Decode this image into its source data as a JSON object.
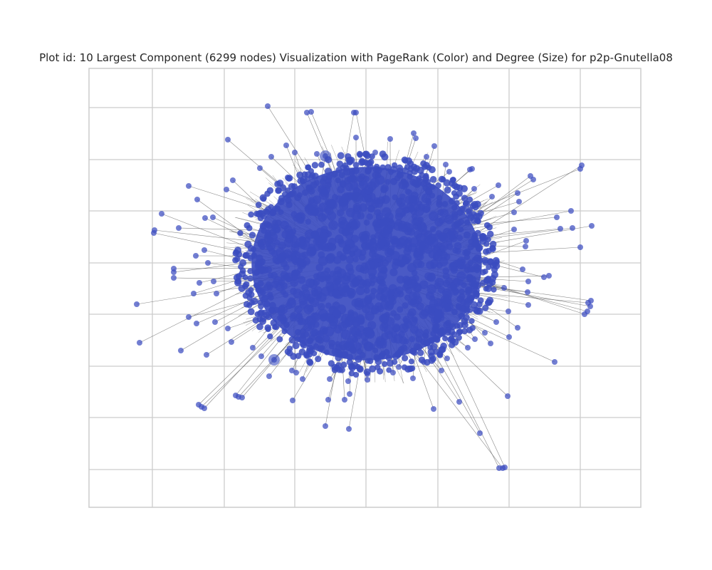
{
  "chart_data": {
    "type": "scatter",
    "title": "Plot id: 10 Largest Component (6299 nodes) Visualization with PageRank (Color) and Degree (Size) for p2p-Gnutella08",
    "xlabel": "",
    "ylabel": "",
    "grid": true,
    "legend": "none",
    "colors": {
      "node": "#3b4cc0",
      "edge": "#555555",
      "grid": "#cccccc",
      "frame": "#cccccc",
      "background": "#ffffff"
    },
    "series": [
      {
        "values_note_free": true,
        "nodes": 6299,
        "points": [
          [
            376,
            149
          ],
          [
            431,
            158
          ],
          [
            437,
            157
          ],
          [
            497,
            158
          ],
          [
            500,
            158
          ],
          [
            320,
            196
          ],
          [
            548,
            195
          ],
          [
            581,
            187
          ],
          [
            457,
            219
          ],
          [
            265,
            261
          ],
          [
            227,
            300
          ],
          [
            217,
            323
          ],
          [
            216,
            327
          ],
          [
            251,
            320
          ],
          [
            244,
            377
          ],
          [
            244,
            382
          ],
          [
            244,
            390
          ],
          [
            192,
            427
          ],
          [
            196,
            481
          ],
          [
            254,
            492
          ],
          [
            290,
            498
          ],
          [
            272,
            412
          ],
          [
            276,
            454
          ],
          [
            279,
            568
          ],
          [
            283,
            571
          ],
          [
            287,
            573
          ],
          [
            331,
            555
          ],
          [
            335,
            557
          ],
          [
            340,
            558
          ],
          [
            385,
            505
          ],
          [
            411,
            562
          ],
          [
            457,
            598
          ],
          [
            490,
            602
          ],
          [
            461,
            561
          ],
          [
            484,
            561
          ],
          [
            491,
            553
          ],
          [
            516,
            533
          ],
          [
            580,
            531
          ],
          [
            609,
            574
          ],
          [
            645,
            564
          ],
          [
            674,
            608
          ],
          [
            701,
            657
          ],
          [
            706,
            657
          ],
          [
            709,
            656
          ],
          [
            713,
            556
          ],
          [
            779,
            508
          ],
          [
            727,
            460
          ],
          [
            817,
            232
          ],
          [
            815,
            237
          ],
          [
            745,
            247
          ],
          [
            749,
            252
          ],
          [
            782,
            305
          ],
          [
            802,
            296
          ],
          [
            831,
            317
          ],
          [
            804,
            320
          ],
          [
            787,
            321
          ],
          [
            815,
            347
          ],
          [
            764,
            389
          ],
          [
            771,
            387
          ],
          [
            826,
            425
          ],
          [
            829,
            430
          ],
          [
            825,
            437
          ],
          [
            821,
            441
          ],
          [
            830,
            422
          ],
          [
            741,
            410
          ],
          [
            742,
            428
          ],
          [
            742,
            395
          ],
          [
            708,
            404
          ],
          [
            715,
            473
          ],
          [
            689,
            482
          ],
          [
            660,
            238
          ],
          [
            663,
            237
          ],
          [
            631,
            241
          ],
          [
            626,
            231
          ],
          [
            599,
            220
          ],
          [
            610,
            205
          ],
          [
            584,
            194
          ],
          [
            527,
            214
          ],
          [
            500,
            193
          ],
          [
            445,
            216
          ],
          [
            414,
            214
          ],
          [
            402,
            204
          ],
          [
            381,
            220
          ],
          [
            365,
            236
          ],
          [
            327,
            253
          ],
          [
            318,
            266
          ],
          [
            277,
            280
          ],
          [
            288,
            306
          ],
          [
            299,
            305
          ],
          [
            275,
            359
          ],
          [
            287,
            351
          ],
          [
            292,
            369
          ],
          [
            300,
            395
          ],
          [
            304,
            412
          ],
          [
            280,
            397
          ],
          [
            265,
            445
          ],
          [
            302,
            452
          ],
          [
            320,
            461
          ],
          [
            325,
            480
          ],
          [
            355,
            488
          ],
          [
            367,
            500
          ],
          [
            378,
            528
          ],
          [
            410,
            520
          ],
          [
            416,
            523
          ],
          [
            425,
            532
          ],
          [
            430,
            499
          ],
          [
            463,
            532
          ],
          [
            489,
            535
          ],
          [
            516,
            525
          ],
          [
            552,
            523
          ],
          [
            560,
            515
          ],
          [
            595,
            508
          ],
          [
            620,
            520
          ],
          [
            628,
            503
          ],
          [
            657,
            488
          ],
          [
            667,
            476
          ],
          [
            681,
            467
          ],
          [
            697,
            452
          ],
          [
            714,
            437
          ],
          [
            734,
            378
          ],
          [
            738,
            346
          ],
          [
            739,
            338
          ],
          [
            722,
            322
          ],
          [
            722,
            298
          ],
          [
            729,
            283
          ],
          [
            727,
            271
          ],
          [
            700,
            260
          ],
          [
            691,
            276
          ],
          [
            666,
            265
          ]
        ]
      }
    ],
    "core": {
      "center": [
        515,
        370
      ],
      "rx": 165,
      "ry": 140
    }
  }
}
